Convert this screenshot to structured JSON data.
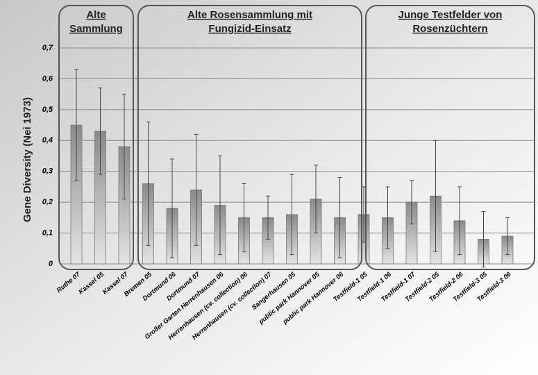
{
  "chart_data": {
    "type": "bar",
    "ylabel": "Gene Diversity  (Nei 1973)",
    "categories": [
      "Ruthe 07",
      "Kassel 05",
      "Kassel 07",
      "Bremen 05",
      "Dortmund 06",
      "Dortmund 07",
      "Großer Garten Herrenhausen 06",
      "Herrenhausen (cv. collection) 06",
      "Herrenhausen (cv. collection) 07",
      "Sangerhausen 05",
      "public park Hannover 05",
      "public park Hannover 06",
      "Testfield-1 05",
      "Testfield-1 06",
      "Testfield-1 07",
      "Testfield-2 05",
      "Testfield-2 06",
      "Testfield-3 05",
      "Testfield-3 06"
    ],
    "values": [
      0.45,
      0.43,
      0.38,
      0.26,
      0.18,
      0.24,
      0.19,
      0.15,
      0.15,
      0.16,
      0.21,
      0.15,
      0.16,
      0.15,
      0.2,
      0.22,
      0.14,
      0.08,
      0.09
    ],
    "errors": [
      0.18,
      0.14,
      0.17,
      0.2,
      0.16,
      0.18,
      0.16,
      0.11,
      0.07,
      0.13,
      0.11,
      0.13,
      0.09,
      0.1,
      0.07,
      0.18,
      0.11,
      0.09,
      0.06
    ],
    "color": "#a8a8a8",
    "ylim": [
      0,
      0.7
    ],
    "yticks": [
      0,
      {
        "value": 0.1,
        "label": "0,1"
      },
      {
        "value": 0.2,
        "label": "0,2"
      },
      {
        "value": 0.3,
        "label": "0,3"
      },
      {
        "value": 0.4,
        "label": "0,4"
      },
      {
        "value": 0.5,
        "label": "0,5"
      },
      {
        "value": 0.6,
        "label": "0,6"
      },
      {
        "value": 0.7,
        "label": "0,7"
      }
    ],
    "grid": true,
    "groups": [
      {
        "lines": [
          "Alte",
          "Sammlung"
        ]
      },
      {
        "lines": [
          "Alte Rosensammlung mit",
          "Fungizid-Einsatz"
        ]
      },
      {
        "lines": [
          "Junge Testfelder von",
          "Rosenzüchtern"
        ]
      }
    ]
  }
}
